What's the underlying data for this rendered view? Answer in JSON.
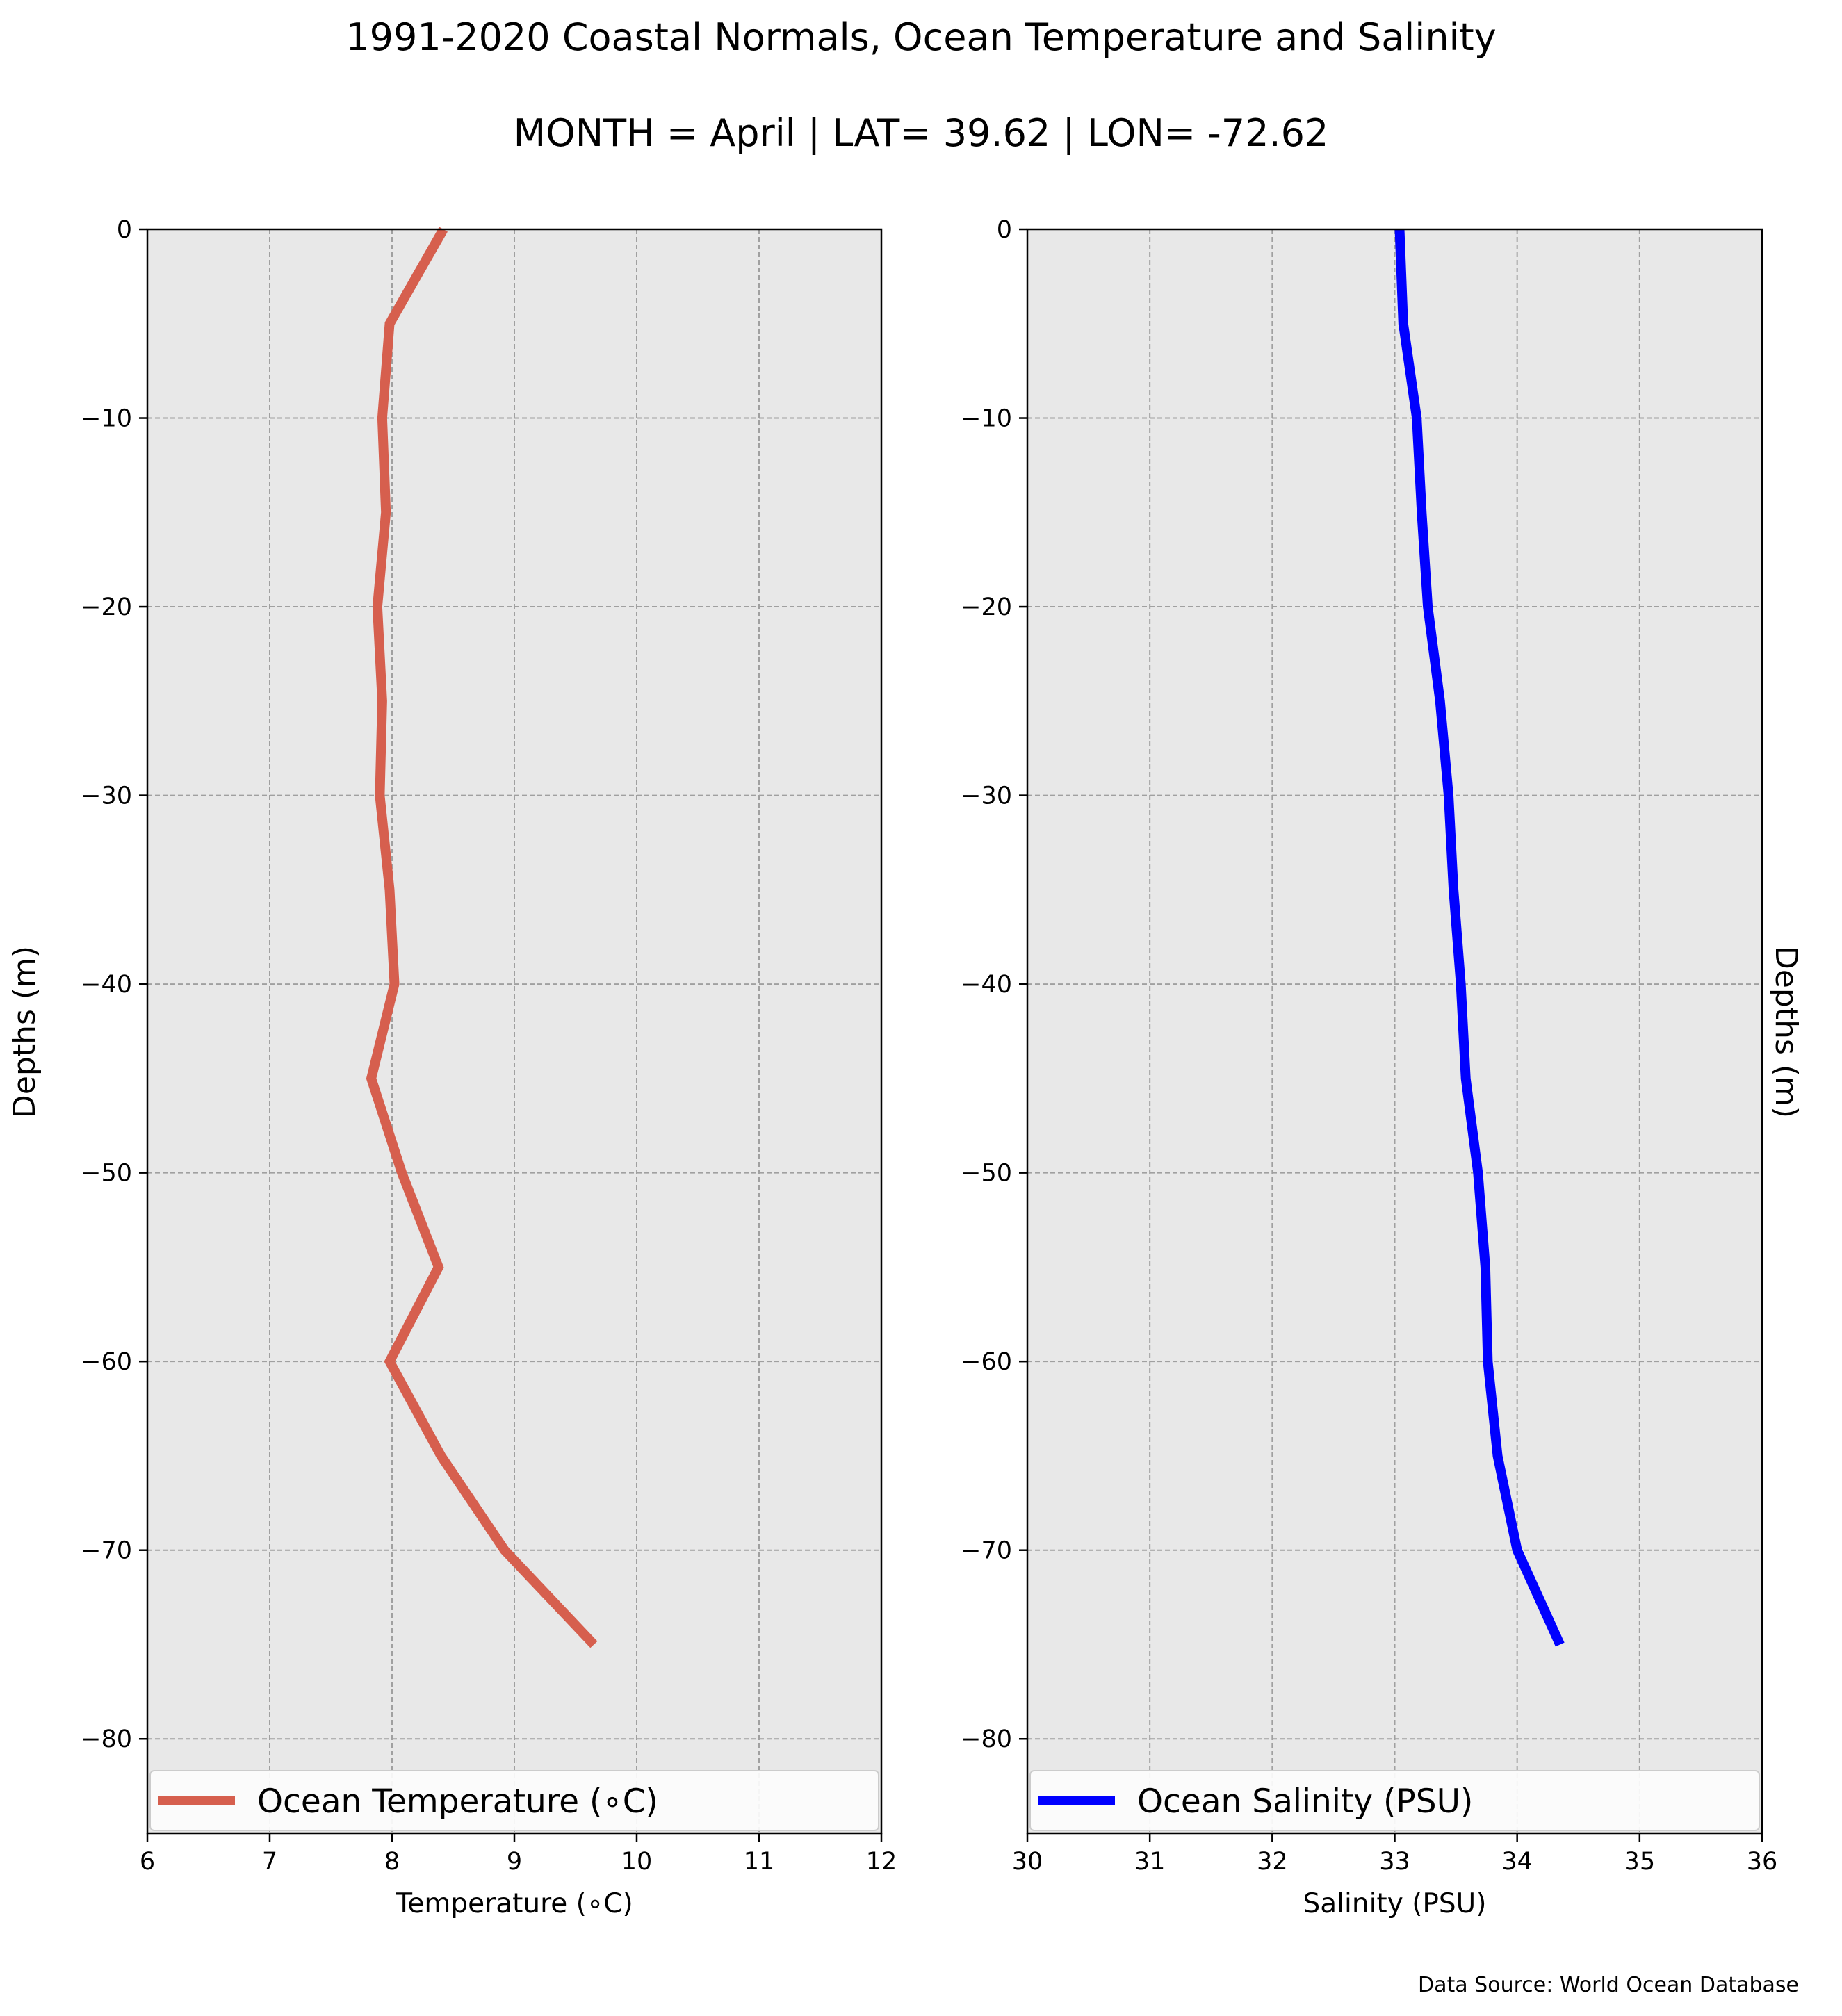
{
  "figure": {
    "title_line1": "1991-2020 Coastal Normals, Ocean Temperature and Salinity",
    "title_line2": "MONTH = April | LAT= 39.62 | LON= -72.62",
    "source_note": "Data Source: World Ocean Database"
  },
  "chart_data": [
    {
      "type": "line",
      "xlabel": "Temperature (∘C)",
      "ylabel": "Depths (m)",
      "xlim": [
        6,
        12
      ],
      "ylim": [
        -85,
        0
      ],
      "xticks": [
        6,
        7,
        8,
        9,
        10,
        11,
        12
      ],
      "yticks": [
        0,
        -10,
        -20,
        -30,
        -40,
        -50,
        -60,
        -70,
        -80
      ],
      "grid": true,
      "legend": "lower",
      "series": [
        {
          "name": "Ocean Temperature (∘C)",
          "color": "#d65f4e",
          "x": [
            8.42,
            7.98,
            7.92,
            7.95,
            7.88,
            7.92,
            7.9,
            7.98,
            8.02,
            7.83,
            8.08,
            8.38,
            7.98,
            8.4,
            8.92,
            9.65
          ],
          "y": [
            0,
            -5,
            -10,
            -15,
            -20,
            -25,
            -30,
            -35,
            -40,
            -45,
            -50,
            -55,
            -60,
            -65,
            -70,
            -75
          ]
        }
      ]
    },
    {
      "type": "line",
      "xlabel": "Salinity (PSU)",
      "ylabel": "Depths (m)",
      "xlim": [
        30,
        36
      ],
      "ylim": [
        -85,
        0
      ],
      "xticks": [
        30,
        31,
        32,
        33,
        34,
        35,
        36
      ],
      "yticks": [
        0,
        -10,
        -20,
        -30,
        -40,
        -50,
        -60,
        -70,
        -80
      ],
      "grid": true,
      "legend": "lower",
      "series": [
        {
          "name": "Ocean Salinity (PSU)",
          "color": "#0000ff",
          "x": [
            33.04,
            33.07,
            33.18,
            33.22,
            33.27,
            33.37,
            33.44,
            33.48,
            33.54,
            33.58,
            33.68,
            33.74,
            33.76,
            33.84,
            34.0,
            34.35
          ],
          "y": [
            0,
            -5,
            -10,
            -15,
            -20,
            -25,
            -30,
            -35,
            -40,
            -45,
            -50,
            -55,
            -60,
            -65,
            -70,
            -75
          ]
        }
      ]
    }
  ]
}
